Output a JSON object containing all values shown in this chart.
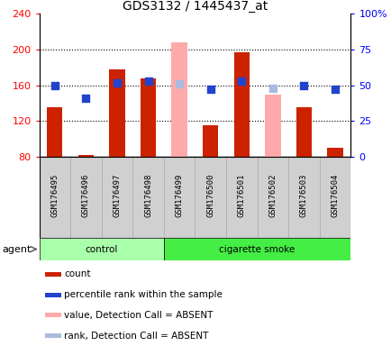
{
  "title": "GDS3132 / 1445437_at",
  "samples": [
    "GSM176495",
    "GSM176496",
    "GSM176497",
    "GSM176498",
    "GSM176499",
    "GSM176500",
    "GSM176501",
    "GSM176502",
    "GSM176503",
    "GSM176504"
  ],
  "counts": [
    135,
    82,
    178,
    168,
    null,
    115,
    197,
    null,
    135,
    90
  ],
  "counts_absent": [
    null,
    null,
    null,
    null,
    208,
    null,
    null,
    150,
    null,
    null
  ],
  "pct_ranks": [
    50,
    41,
    52,
    53,
    null,
    47,
    53,
    null,
    50,
    47
  ],
  "pct_ranks_absent": [
    null,
    null,
    null,
    null,
    51,
    null,
    null,
    48,
    null,
    null
  ],
  "ylim_left": [
    80,
    240
  ],
  "ylim_right": [
    0,
    100
  ],
  "yticks_left": [
    80,
    120,
    160,
    200,
    240
  ],
  "yticks_right": [
    0,
    25,
    50,
    75,
    100
  ],
  "ytick_labels_left": [
    "80",
    "120",
    "160",
    "200",
    "240"
  ],
  "ytick_labels_right": [
    "0",
    "25",
    "50",
    "75",
    "100%"
  ],
  "bar_color_present": "#cc2200",
  "bar_color_absent": "#ffaaaa",
  "dot_color_present": "#2244cc",
  "dot_color_absent": "#aabbdd",
  "control_color": "#aaffaa",
  "smoke_color": "#44ee44",
  "agent_label": "agent",
  "legend_items": [
    {
      "label": "count",
      "color": "#cc2200"
    },
    {
      "label": "percentile rank within the sample",
      "color": "#2244cc"
    },
    {
      "label": "value, Detection Call = ABSENT",
      "color": "#ffaaaa"
    },
    {
      "label": "rank, Detection Call = ABSENT",
      "color": "#aabbdd"
    }
  ],
  "bar_width": 0.5,
  "dot_size": 30
}
